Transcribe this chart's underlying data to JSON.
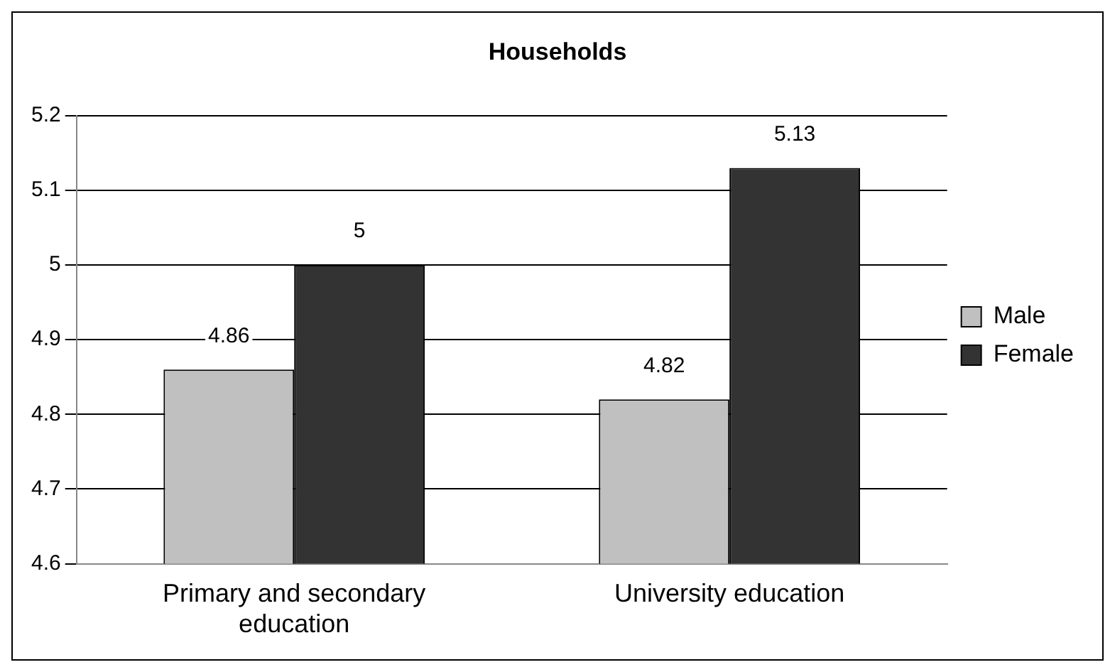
{
  "chart_data": {
    "type": "bar",
    "title": "Households",
    "categories": [
      "Primary and secondary education",
      "University education"
    ],
    "series": [
      {
        "name": "Male",
        "color": "#c0c0c0",
        "values": [
          4.86,
          4.82
        ]
      },
      {
        "name": "Female",
        "color": "#333333",
        "values": [
          5,
          5.13
        ]
      }
    ],
    "ylim": [
      4.6,
      5.2
    ],
    "yticks": [
      4.6,
      4.7,
      4.8,
      4.9,
      5,
      5.1,
      5.2
    ],
    "grid": "y",
    "legend": "right",
    "data_labels": true
  }
}
